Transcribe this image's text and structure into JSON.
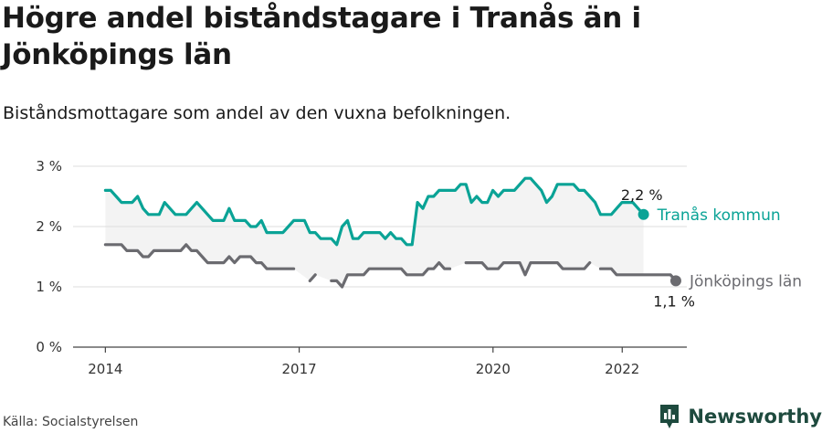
{
  "title": "Högre andel biståndstagare i Tranås än i Jönköpings län",
  "subtitle": "Biståndsmottagare som andel av den vuxna befolkningen.",
  "source": "Källa: Socialstyrelsen",
  "brand": "Newsworthy",
  "colors": {
    "tranas": "#0aa396",
    "lan": "#6b6b70",
    "band": "#f3f3f3",
    "grid": "#dddddd",
    "brand": "#1e4a3e"
  },
  "chart_data": {
    "type": "line",
    "ylim": [
      0,
      3
    ],
    "y_ticks": [
      0,
      1,
      2,
      3
    ],
    "y_tick_labels": [
      "0 %",
      "1 %",
      "2 %",
      "3 %"
    ],
    "x_ticks": [
      2014,
      2017,
      2020,
      2022
    ],
    "x_tick_labels": [
      "2014",
      "2017",
      "2020",
      "2022"
    ],
    "x_start": 2014.0,
    "x_step": 0.0833,
    "series": [
      {
        "name": "Tranås kommun",
        "end_label": "2,2 %",
        "values": [
          2.6,
          2.6,
          2.5,
          2.4,
          2.4,
          2.4,
          2.5,
          2.3,
          2.2,
          2.2,
          2.2,
          2.4,
          2.3,
          2.2,
          2.2,
          2.2,
          2.3,
          2.4,
          2.3,
          2.2,
          2.1,
          2.1,
          2.1,
          2.3,
          2.1,
          2.1,
          2.1,
          2.0,
          2.0,
          2.1,
          1.9,
          1.9,
          1.9,
          1.9,
          2.0,
          2.1,
          2.1,
          2.1,
          1.9,
          1.9,
          1.8,
          1.8,
          1.8,
          1.7,
          2.0,
          2.1,
          1.8,
          1.8,
          1.9,
          1.9,
          1.9,
          1.9,
          1.8,
          1.9,
          1.8,
          1.8,
          1.7,
          1.7,
          2.4,
          2.3,
          2.5,
          2.5,
          2.6,
          2.6,
          2.6,
          2.6,
          2.7,
          2.7,
          2.4,
          2.5,
          2.4,
          2.4,
          2.6,
          2.5,
          2.6,
          2.6,
          2.6,
          2.7,
          2.8,
          2.8,
          2.7,
          2.6,
          2.4,
          2.5,
          2.7,
          2.7,
          2.7,
          2.7,
          2.6,
          2.6,
          2.5,
          2.4,
          2.2,
          2.2,
          2.2,
          2.3,
          2.4,
          2.4,
          2.4,
          2.3,
          2.2
        ]
      },
      {
        "name": "Jönköpings län",
        "end_label": "1,1 %",
        "values": [
          1.7,
          1.7,
          1.7,
          1.7,
          1.6,
          1.6,
          1.6,
          1.5,
          1.5,
          1.6,
          1.6,
          1.6,
          1.6,
          1.6,
          1.6,
          1.7,
          1.6,
          1.6,
          1.5,
          1.4,
          1.4,
          1.4,
          1.4,
          1.5,
          1.4,
          1.5,
          1.5,
          1.5,
          1.4,
          1.4,
          1.3,
          1.3,
          1.3,
          1.3,
          1.3,
          1.3,
          null,
          null,
          1.1,
          1.2,
          null,
          null,
          1.1,
          1.1,
          1.0,
          1.2,
          1.2,
          1.2,
          1.2,
          1.3,
          1.3,
          1.3,
          1.3,
          1.3,
          1.3,
          1.3,
          1.2,
          1.2,
          1.2,
          1.2,
          1.3,
          1.3,
          1.4,
          1.3,
          1.3,
          null,
          null,
          1.4,
          1.4,
          1.4,
          1.4,
          1.3,
          1.3,
          1.3,
          1.4,
          1.4,
          1.4,
          1.4,
          1.2,
          1.4,
          1.4,
          1.4,
          1.4,
          1.4,
          1.4,
          1.3,
          1.3,
          1.3,
          1.3,
          1.3,
          1.4,
          null,
          1.3,
          1.3,
          1.3,
          1.2,
          1.2,
          1.2,
          1.2,
          1.2,
          1.2,
          1.2,
          1.2,
          1.2,
          1.2,
          1.2,
          1.1
        ]
      }
    ]
  }
}
